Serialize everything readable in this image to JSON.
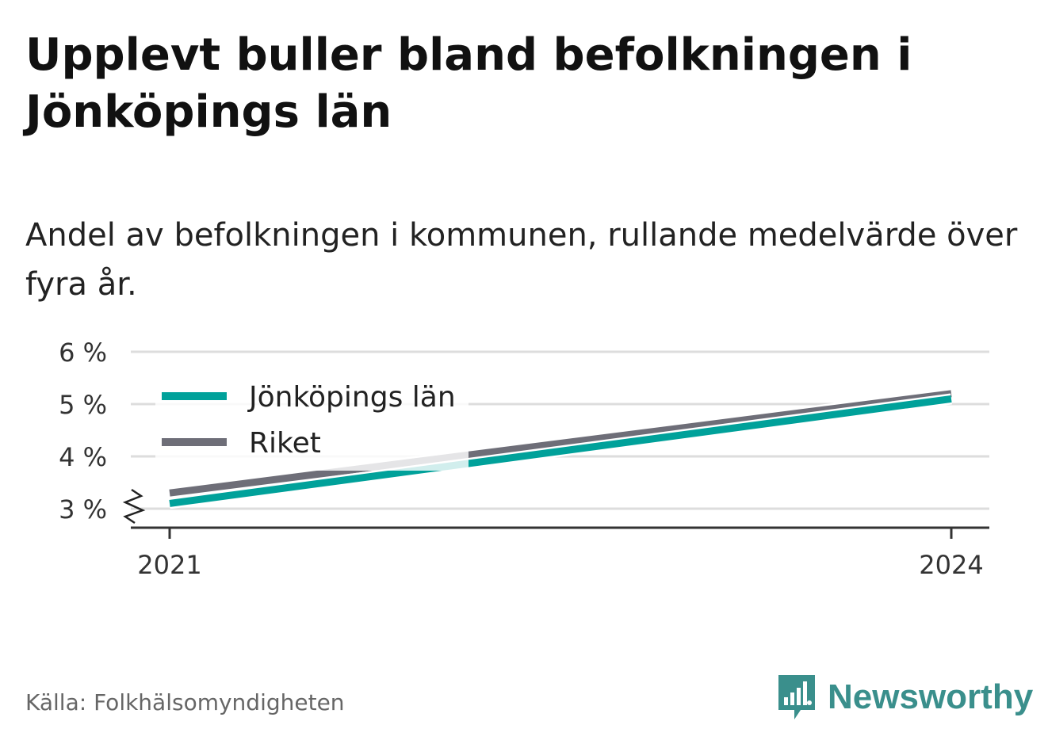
{
  "header": {
    "title": "Upplevt buller bland befolkningen i Jönköpings län",
    "subtitle": "Andel av befolkningen i kommunen, rullande medelvärde över fyra år."
  },
  "footer": {
    "source": "Källa: Folkhälsomyndigheten",
    "brand": "Newsworthy"
  },
  "colors": {
    "jonkoping": "#00a19a",
    "riket": "#6e6e78",
    "grid": "#dddddd",
    "axis": "#333333",
    "brand": "#3a8f8c"
  },
  "chart_data": {
    "type": "line",
    "x": [
      "2021",
      "2024"
    ],
    "series": [
      {
        "name": "Jönköpings län",
        "values": [
          3.1,
          5.1
        ],
        "color": "#00a19a"
      },
      {
        "name": "Riket",
        "values": [
          3.3,
          5.2
        ],
        "color": "#6e6e78"
      }
    ],
    "yticks": [
      "3 %",
      "4 %",
      "5 %",
      "6 %"
    ],
    "ytick_values": [
      3,
      4,
      5,
      6
    ],
    "xticks": [
      "2021",
      "2024"
    ],
    "ylim": [
      2.7,
      6
    ],
    "y_axis_break": true,
    "grid": true,
    "legend_position": "top-left"
  }
}
